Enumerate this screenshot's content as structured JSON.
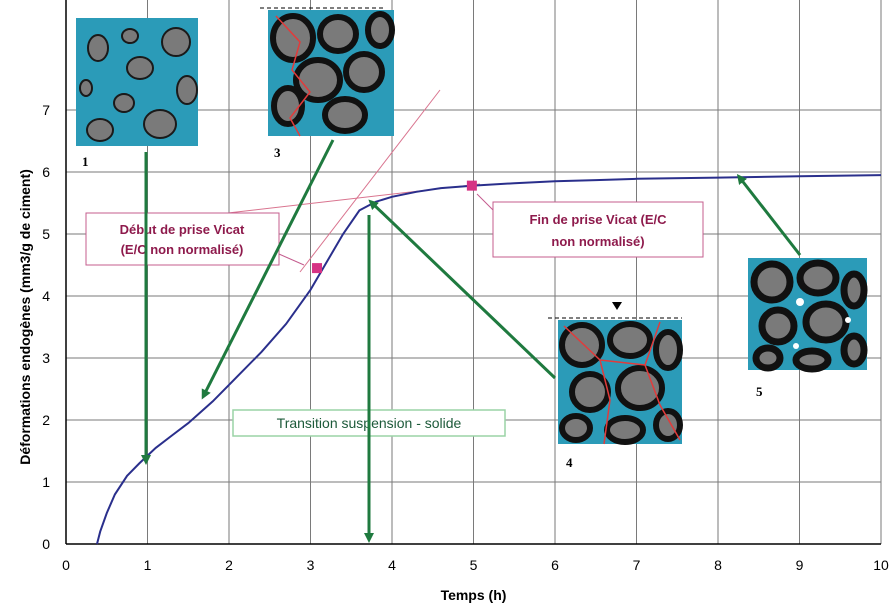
{
  "chart_data": {
    "type": "line",
    "title": "",
    "xlabel": "Temps (h)",
    "ylabel": "Déformations endogènes (mm3/g de ciment)",
    "xlim": [
      0,
      10
    ],
    "ylim": [
      0,
      7
    ],
    "x_ticks": [
      "0",
      "1",
      "2",
      "3",
      "4",
      "5",
      "6",
      "7",
      "8",
      "9",
      "10"
    ],
    "y_ticks": [
      "0",
      "1",
      "2",
      "3",
      "4",
      "5",
      "6",
      "7"
    ],
    "grid": true,
    "series": [
      {
        "color": "#2a2f8c",
        "x": [
          0.38,
          0.42,
          0.5,
          0.6,
          0.75,
          0.9,
          1.1,
          1.3,
          1.5,
          1.8,
          2.1,
          2.4,
          2.7,
          3.0,
          3.2,
          3.4,
          3.6,
          3.8,
          4.0,
          4.3,
          4.6,
          5.0,
          5.5,
          6.0,
          6.5,
          7.0,
          8.0,
          9.0,
          10.0
        ],
        "y": [
          0.0,
          0.2,
          0.5,
          0.8,
          1.1,
          1.3,
          1.55,
          1.75,
          1.95,
          2.3,
          2.7,
          3.1,
          3.55,
          4.1,
          4.55,
          5.0,
          5.38,
          5.52,
          5.6,
          5.68,
          5.74,
          5.78,
          5.82,
          5.85,
          5.87,
          5.89,
          5.91,
          5.93,
          5.95
        ]
      }
    ],
    "markers": [
      {
        "label": "Début de prise Vicat",
        "x": 3.08,
        "y": 4.45,
        "color": "#d63384"
      },
      {
        "label": "Fin de prise Vicat",
        "x": 4.98,
        "y": 5.78,
        "color": "#d63384"
      }
    ],
    "annotations": {
      "debut_line1": "Début de prise Vicat",
      "debut_line2": "(E/C non normalisé)",
      "fin_line1": "Fin de prise Vicat (E/C",
      "fin_line2": "non normalisé)",
      "transition": "Transition suspension - solide"
    },
    "micrographs": [
      "1",
      "3",
      "4",
      "5"
    ],
    "colors": {
      "curve": "#2a2f8c",
      "arrow": "#1f7a3f",
      "marker": "#d63384",
      "box_border": "#c45c8e",
      "tangent": "#d9748f",
      "micro_bg": "#2b9bb8"
    }
  }
}
